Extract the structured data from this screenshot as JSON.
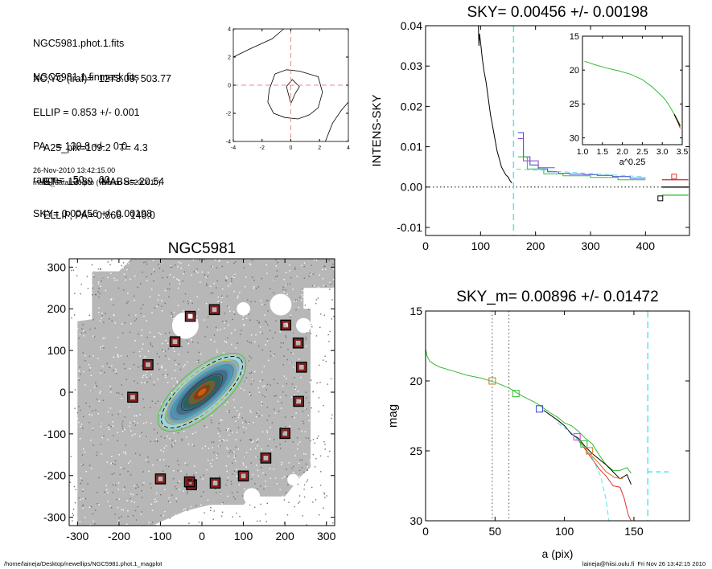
{
  "info_block": {
    "lines_group1": [
      "NGC5981.phot.1.fits",
      "NGC5981.1.finmask.fits"
    ],
    "lines_group2": [
      "XC,YC (iraf)=  1273.09, 503.77",
      "ELLIP = 0.853 +/- 0.001",
      "PA    = 139.8 +/-   0.0",
      "range=   50.-   60.",
      "SKY= 0.00456 +/- 0.00198"
    ],
    "lines_group3": [
      "A25_pix=109.2   T= 4.3",
      "BT=  13.89   MABS=-20.54",
      "ELLIP, PA= 0.866   140.0"
    ],
    "timestamp": "26-Nov-2010 13:42:15.00",
    "program": "make_datalist0.pro (version HS230610)"
  },
  "footer": {
    "left": "/home/laineja/Desktop/newellips/NGC5981.phot.1_magplot",
    "right": "laineja@hiisi.oulu.fi  Fri Nov 26 13:42:15 2010"
  },
  "colors": {
    "cyan": "#55e6e6",
    "green": "#33bb33",
    "blue": "#3344cc",
    "red": "#dd3333",
    "orange": "#cc7722",
    "magenta": "#cc44cc",
    "gray": "#888888",
    "box_red": "#8b1a1a"
  },
  "chart_data": [
    {
      "id": "center_contours",
      "type": "contour",
      "title": "",
      "xlim": [
        -4,
        4
      ],
      "ylim": [
        -4,
        4
      ],
      "xticks": [
        -4,
        -2,
        0,
        2,
        4
      ],
      "yticks": [
        -4,
        -2,
        0,
        2,
        4
      ],
      "crosshair": {
        "x": 0,
        "y": 0
      },
      "contours": [
        [
          [
            -1.1,
            0.8
          ],
          [
            -0.3,
            1.1
          ],
          [
            0.6,
            1.0
          ],
          [
            1.9,
            0.6
          ],
          [
            2.2,
            -0.5
          ],
          [
            1.9,
            -1.6
          ],
          [
            1.3,
            -2.1
          ],
          [
            0.5,
            -2.4
          ],
          [
            -0.4,
            -2.3
          ],
          [
            -1.2,
            -2.0
          ],
          [
            -1.6,
            -1.2
          ],
          [
            -1.5,
            -0.3
          ],
          [
            -1.1,
            0.8
          ]
        ],
        [
          [
            -0.3,
            -0.1
          ],
          [
            0.1,
            0.4
          ],
          [
            0.6,
            -0.1
          ],
          [
            0.3,
            -0.6
          ],
          [
            0.0,
            -1.3
          ],
          [
            -0.3,
            -0.1
          ]
        ],
        [
          [
            -4,
            2.0
          ],
          [
            -2.8,
            2.6
          ],
          [
            -1.3,
            3.3
          ],
          [
            -0.5,
            4.0
          ]
        ],
        [
          [
            2.4,
            -4.0
          ],
          [
            2.9,
            -2.7
          ],
          [
            3.5,
            -1.8
          ],
          [
            4.0,
            -1.2
          ]
        ]
      ]
    },
    {
      "id": "intens_sky",
      "type": "line",
      "title": "SKY= 0.00456 +/- 0.00198",
      "xlabel": "",
      "ylabel": "INTENS-SKY",
      "xlim": [
        0,
        480
      ],
      "ylim": [
        -0.012,
        0.04
      ],
      "xticks": [
        0,
        100,
        200,
        300,
        400
      ],
      "yticks": [
        -0.01,
        0.0,
        0.01,
        0.02,
        0.03,
        0.04
      ],
      "ytick_labels": [
        "-0.01",
        "0.00",
        "0.01",
        "0.02",
        "0.03",
        "0.04"
      ],
      "vline_cyan": 160,
      "zero_line": 0,
      "series": [
        {
          "color": "black",
          "x": [
            96,
            97,
            98,
            100,
            103,
            106,
            110,
            114,
            118,
            122,
            126,
            130,
            134,
            138,
            142,
            146,
            150,
            154,
            157
          ],
          "y": [
            0.04,
            0.035,
            0.038,
            0.036,
            0.032,
            0.029,
            0.026,
            0.022,
            0.018,
            0.015,
            0.012,
            0.009,
            0.007,
            0.005,
            0.004,
            0.003,
            0.0025,
            0.0015,
            0.001
          ]
        },
        {
          "color": "blue",
          "x": [
            168,
            178,
            178,
            190,
            190,
            205,
            205,
            222,
            222,
            242,
            242,
            262,
            262,
            288,
            288,
            312,
            312,
            340,
            340,
            372,
            372,
            400
          ],
          "y": [
            0.0135,
            0.0135,
            0.0075,
            0.0075,
            0.0055,
            0.0055,
            0.0045,
            0.0045,
            0.0038,
            0.0038,
            0.0034,
            0.0034,
            0.0032,
            0.0032,
            0.0031,
            0.0031,
            0.0029,
            0.0029,
            0.0026,
            0.0026,
            0.0022,
            0.0022
          ]
        },
        {
          "color": "#8844cc",
          "x": [
            168,
            178,
            178,
            205,
            205,
            235
          ],
          "y": [
            0.012,
            0.012,
            0.0065,
            0.0065,
            0.0048,
            0.0048
          ]
        },
        {
          "color": "green",
          "x": [
            168,
            185,
            185,
            215,
            215,
            250,
            250,
            300,
            300,
            350,
            350,
            400
          ],
          "y": [
            0.0075,
            0.0075,
            0.0045,
            0.0045,
            0.0033,
            0.0033,
            0.0028,
            0.0028,
            0.0024,
            0.0024,
            0.0018,
            0.0018
          ]
        },
        {
          "color": "cyan_dash",
          "x": [
            165,
            400
          ],
          "y": [
            0.0045,
            0.0025
          ]
        }
      ],
      "squares": [
        {
          "x": 427,
          "y": -0.0028,
          "color": "black"
        },
        {
          "x": 452,
          "y": 0.0026,
          "color": "red"
        }
      ],
      "end_segments": [
        {
          "x": [
            430,
            478
          ],
          "y": [
            0.0,
            0.0
          ],
          "color": "black"
        },
        {
          "x": [
            430,
            478
          ],
          "y": [
            0.0018,
            0.0018
          ],
          "color": "red"
        },
        {
          "x": [
            430,
            478
          ],
          "y": [
            -0.002,
            -0.002
          ],
          "color": "green"
        }
      ]
    },
    {
      "id": "inset_profile",
      "type": "line",
      "title": "",
      "xlabel": "a^0.25",
      "ylabel": "",
      "xlim": [
        1.0,
        3.5
      ],
      "ylim": [
        15,
        31
      ],
      "xticks": [
        1.0,
        1.5,
        2.0,
        2.5,
        3.0,
        3.5
      ],
      "xtick_labels": [
        "1.0",
        "1.5",
        "2.0",
        "2.5",
        "3.0",
        "3.5"
      ],
      "yticks": [
        15,
        20,
        25,
        30
      ],
      "y_inverted": true,
      "series": [
        {
          "color": "green",
          "x": [
            1.05,
            1.3,
            1.6,
            1.9,
            2.2,
            2.5,
            2.75,
            2.95,
            3.05,
            3.15,
            3.25,
            3.35,
            3.45
          ],
          "y": [
            18.7,
            19.2,
            19.7,
            20.1,
            20.6,
            21.4,
            22.5,
            23.6,
            24.2,
            25.0,
            26.0,
            27.0,
            28.1
          ]
        },
        {
          "color": "red",
          "x": [
            3.3,
            3.35,
            3.4,
            3.45
          ],
          "y": [
            26.6,
            27.2,
            27.8,
            28.6
          ]
        },
        {
          "color": "black",
          "x": [
            3.3,
            3.38,
            3.45
          ],
          "y": [
            26.5,
            27.5,
            28.3
          ]
        }
      ]
    },
    {
      "id": "mag_profile",
      "type": "line",
      "title": "SKY_m=  0.00896 +/- 0.01472",
      "xlabel": "a (pix)",
      "ylabel": "mag",
      "xlim": [
        0,
        190
      ],
      "ylim": [
        15,
        30
      ],
      "xticks": [
        0,
        50,
        100,
        150
      ],
      "yticks": [
        15,
        20,
        25,
        30
      ],
      "y_inverted": true,
      "vlines_dotted": [
        48,
        60
      ],
      "vline_cyan": 160,
      "sky_level_dash": {
        "x": [
          160,
          176
        ],
        "y": 26.5
      },
      "series": [
        {
          "color": "green",
          "x": [
            0,
            1,
            3,
            6,
            10,
            20,
            30,
            40,
            50,
            60,
            70,
            80,
            90,
            95,
            100,
            105,
            110,
            115,
            120,
            125,
            130,
            135,
            140,
            145,
            148
          ],
          "y": [
            17.7,
            18.2,
            18.6,
            18.8,
            19.0,
            19.3,
            19.6,
            19.8,
            20.1,
            20.5,
            21.1,
            21.6,
            22.3,
            22.6,
            23.0,
            23.2,
            23.6,
            24.1,
            24.5,
            25.3,
            26.0,
            26.4,
            26.4,
            26.2,
            26.6
          ]
        },
        {
          "color": "black",
          "x": [
            85,
            95,
            100,
            105,
            110,
            115,
            120,
            125,
            130,
            135,
            140,
            145,
            148
          ],
          "y": [
            22.1,
            22.8,
            23.2,
            23.8,
            24.1,
            24.7,
            25.2,
            25.6,
            26.0,
            26.5,
            27.0,
            26.7,
            27.4
          ]
        },
        {
          "color": "red",
          "x": [
            108,
            115,
            120,
            125,
            130,
            135,
            140,
            143,
            146,
            148
          ],
          "y": [
            24.0,
            24.9,
            25.6,
            26.3,
            26.8,
            27.5,
            27.6,
            28.4,
            29.6,
            30.0
          ]
        },
        {
          "color": "orange",
          "x": [
            110,
            118,
            124,
            130,
            136,
            142
          ],
          "y": [
            24.2,
            25.2,
            25.8,
            26.5,
            26.9,
            27.0
          ]
        },
        {
          "color": "cyan_dash",
          "x": [
            95,
            105,
            112,
            120,
            126,
            130,
            132
          ],
          "y": [
            23.0,
            23.7,
            24.5,
            25.5,
            26.8,
            28.5,
            30.0
          ]
        }
      ],
      "squares": [
        {
          "x": 48,
          "y": 20.0,
          "color": "orange"
        },
        {
          "x": 65,
          "y": 20.9,
          "color": "green"
        },
        {
          "x": 82,
          "y": 22.0,
          "color": "blue"
        },
        {
          "x": 109,
          "y": 24.0,
          "color": "magenta"
        },
        {
          "x": 114,
          "y": 24.5,
          "color": "green"
        },
        {
          "x": 118,
          "y": 25.0,
          "color": "orange"
        }
      ]
    },
    {
      "id": "ngc5981_image",
      "type": "image",
      "title": "NGC5981",
      "xlim": [
        -320,
        320
      ],
      "ylim": [
        -320,
        320
      ],
      "xticks": [
        -300,
        -200,
        -100,
        0,
        100,
        200,
        300
      ],
      "yticks": [
        -300,
        -200,
        -100,
        0,
        100,
        200,
        300
      ],
      "galaxy": {
        "center": [
          0,
          0
        ],
        "semi_major": 125,
        "ellipticity": 0.853,
        "pa_deg": 139.8
      },
      "sky_boxes": [
        [
          -28,
          182
        ],
        [
          30,
          198
        ],
        [
          -130,
          66
        ],
        [
          -65,
          121
        ],
        [
          -167,
          -12
        ],
        [
          202,
          161
        ],
        [
          232,
          118
        ],
        [
          240,
          60
        ],
        [
          233,
          -22
        ],
        [
          200,
          -99
        ],
        [
          154,
          -158
        ],
        [
          100,
          -201
        ],
        [
          32,
          -218
        ],
        [
          -25,
          -222
        ],
        [
          -100,
          -208
        ],
        [
          -30,
          -215
        ]
      ]
    }
  ]
}
